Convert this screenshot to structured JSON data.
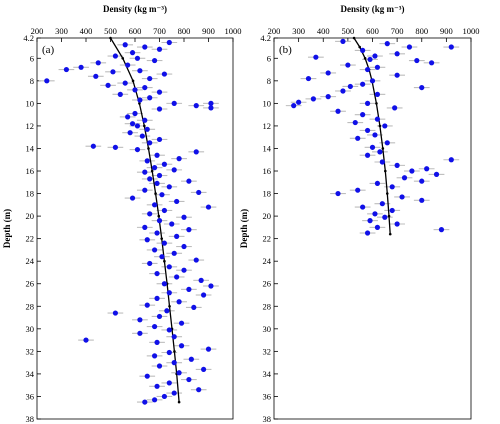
{
  "chart_data": [
    {
      "type": "scatter",
      "panel_label": "(a)",
      "xlabel": "Density (kg m⁻³)",
      "ylabel": "Depth (m)",
      "xlim": [
        200,
        1000
      ],
      "ylim": [
        38,
        4.2
      ],
      "x_ticks": [
        200,
        300,
        400,
        500,
        600,
        700,
        800,
        900,
        1000
      ],
      "y_ticks": [
        4.2,
        6,
        8,
        10,
        12,
        14,
        16,
        18,
        20,
        22,
        24,
        26,
        28,
        30,
        32,
        34,
        36,
        38
      ],
      "x_axis_position": "top",
      "error_bars": "horizontal",
      "marker_color": "#1010e8",
      "error_bar_color": "#bdbdbd",
      "fit_line_color": "#000000",
      "fit_line": {
        "depth": [
          4.2,
          6,
          8,
          10,
          12,
          14,
          16,
          18,
          20,
          22,
          24,
          26,
          28,
          30,
          32,
          34,
          36.5
        ],
        "density": [
          500,
          550,
          592,
          618,
          638,
          655,
          670,
          684,
          697,
          709,
          720,
          731,
          741,
          751,
          761,
          770,
          780
        ]
      },
      "points": [
        {
          "x": 740,
          "y": 4.6
        },
        {
          "x": 560,
          "y": 4.8
        },
        {
          "x": 640,
          "y": 5.0
        },
        {
          "x": 700,
          "y": 5.2
        },
        {
          "x": 590,
          "y": 5.5
        },
        {
          "x": 520,
          "y": 5.8
        },
        {
          "x": 610,
          "y": 6.0
        },
        {
          "x": 680,
          "y": 6.2
        },
        {
          "x": 450,
          "y": 6.4
        },
        {
          "x": 570,
          "y": 6.6
        },
        {
          "x": 380,
          "y": 6.8
        },
        {
          "x": 320,
          "y": 7.0
        },
        {
          "x": 620,
          "y": 7.1
        },
        {
          "x": 510,
          "y": 7.2
        },
        {
          "x": 720,
          "y": 7.4
        },
        {
          "x": 440,
          "y": 7.6
        },
        {
          "x": 660,
          "y": 7.8
        },
        {
          "x": 240,
          "y": 8.0
        },
        {
          "x": 560,
          "y": 8.2
        },
        {
          "x": 490,
          "y": 8.4
        },
        {
          "x": 640,
          "y": 8.6
        },
        {
          "x": 600,
          "y": 8.8
        },
        {
          "x": 700,
          "y": 9.0
        },
        {
          "x": 540,
          "y": 9.2
        },
        {
          "x": 660,
          "y": 9.5
        },
        {
          "x": 620,
          "y": 9.7
        },
        {
          "x": 760,
          "y": 10.0
        },
        {
          "x": 910,
          "y": 10.0
        },
        {
          "x": 850,
          "y": 10.2
        },
        {
          "x": 910,
          "y": 10.4
        },
        {
          "x": 700,
          "y": 10.5
        },
        {
          "x": 600,
          "y": 10.9
        },
        {
          "x": 570,
          "y": 11.2
        },
        {
          "x": 640,
          "y": 11.5
        },
        {
          "x": 590,
          "y": 11.8
        },
        {
          "x": 610,
          "y": 12.0
        },
        {
          "x": 650,
          "y": 12.3
        },
        {
          "x": 580,
          "y": 12.6
        },
        {
          "x": 630,
          "y": 12.9
        },
        {
          "x": 700,
          "y": 13.2
        },
        {
          "x": 660,
          "y": 13.5
        },
        {
          "x": 430,
          "y": 13.8
        },
        {
          "x": 520,
          "y": 13.9
        },
        {
          "x": 610,
          "y": 14.1
        },
        {
          "x": 850,
          "y": 14.3
        },
        {
          "x": 690,
          "y": 14.6
        },
        {
          "x": 780,
          "y": 14.9
        },
        {
          "x": 650,
          "y": 15.1
        },
        {
          "x": 720,
          "y": 15.4
        },
        {
          "x": 680,
          "y": 15.7
        },
        {
          "x": 760,
          "y": 15.9
        },
        {
          "x": 640,
          "y": 16.1
        },
        {
          "x": 700,
          "y": 16.4
        },
        {
          "x": 660,
          "y": 16.7
        },
        {
          "x": 820,
          "y": 16.9
        },
        {
          "x": 690,
          "y": 17.1
        },
        {
          "x": 740,
          "y": 17.4
        },
        {
          "x": 640,
          "y": 17.7
        },
        {
          "x": 860,
          "y": 17.9
        },
        {
          "x": 710,
          "y": 18.1
        },
        {
          "x": 590,
          "y": 18.4
        },
        {
          "x": 770,
          "y": 18.7
        },
        {
          "x": 680,
          "y": 19.0
        },
        {
          "x": 900,
          "y": 19.2
        },
        {
          "x": 720,
          "y": 19.5
        },
        {
          "x": 660,
          "y": 19.8
        },
        {
          "x": 800,
          "y": 20.1
        },
        {
          "x": 700,
          "y": 20.4
        },
        {
          "x": 750,
          "y": 20.7
        },
        {
          "x": 640,
          "y": 21.0
        },
        {
          "x": 820,
          "y": 21.2
        },
        {
          "x": 690,
          "y": 21.5
        },
        {
          "x": 770,
          "y": 21.8
        },
        {
          "x": 650,
          "y": 22.1
        },
        {
          "x": 720,
          "y": 22.4
        },
        {
          "x": 800,
          "y": 22.7
        },
        {
          "x": 680,
          "y": 23.0
        },
        {
          "x": 760,
          "y": 23.3
        },
        {
          "x": 710,
          "y": 23.6
        },
        {
          "x": 850,
          "y": 23.9
        },
        {
          "x": 660,
          "y": 24.2
        },
        {
          "x": 740,
          "y": 24.5
        },
        {
          "x": 800,
          "y": 24.8
        },
        {
          "x": 690,
          "y": 25.1
        },
        {
          "x": 770,
          "y": 25.4
        },
        {
          "x": 870,
          "y": 25.7
        },
        {
          "x": 720,
          "y": 26.0
        },
        {
          "x": 910,
          "y": 26.2
        },
        {
          "x": 820,
          "y": 26.5
        },
        {
          "x": 740,
          "y": 26.8
        },
        {
          "x": 880,
          "y": 27.0
        },
        {
          "x": 690,
          "y": 27.3
        },
        {
          "x": 780,
          "y": 27.6
        },
        {
          "x": 650,
          "y": 27.9
        },
        {
          "x": 840,
          "y": 28.1
        },
        {
          "x": 730,
          "y": 28.4
        },
        {
          "x": 520,
          "y": 28.6
        },
        {
          "x": 700,
          "y": 28.9
        },
        {
          "x": 620,
          "y": 29.2
        },
        {
          "x": 790,
          "y": 29.5
        },
        {
          "x": 680,
          "y": 29.8
        },
        {
          "x": 740,
          "y": 30.1
        },
        {
          "x": 620,
          "y": 30.4
        },
        {
          "x": 760,
          "y": 30.7
        },
        {
          "x": 400,
          "y": 31.0
        },
        {
          "x": 690,
          "y": 31.2
        },
        {
          "x": 790,
          "y": 31.5
        },
        {
          "x": 900,
          "y": 31.8
        },
        {
          "x": 740,
          "y": 32.1
        },
        {
          "x": 680,
          "y": 32.4
        },
        {
          "x": 830,
          "y": 32.7
        },
        {
          "x": 760,
          "y": 33.0
        },
        {
          "x": 700,
          "y": 33.3
        },
        {
          "x": 880,
          "y": 33.6
        },
        {
          "x": 780,
          "y": 33.9
        },
        {
          "x": 650,
          "y": 34.2
        },
        {
          "x": 820,
          "y": 34.5
        },
        {
          "x": 740,
          "y": 34.8
        },
        {
          "x": 690,
          "y": 35.1
        },
        {
          "x": 860,
          "y": 35.4
        },
        {
          "x": 760,
          "y": 35.7
        },
        {
          "x": 720,
          "y": 36.0
        },
        {
          "x": 680,
          "y": 36.3
        },
        {
          "x": 640,
          "y": 36.5
        }
      ]
    },
    {
      "type": "scatter",
      "panel_label": "(b)",
      "xlabel": "Density (kg m⁻³)",
      "ylabel": "Depth (m)",
      "xlim": [
        200,
        1000
      ],
      "ylim": [
        38,
        4.2
      ],
      "x_ticks": [
        200,
        300,
        400,
        500,
        600,
        700,
        800,
        900,
        1000
      ],
      "y_ticks": [
        4.2,
        6,
        8,
        10,
        12,
        14,
        16,
        18,
        20,
        22,
        24,
        26,
        28,
        30,
        32,
        34,
        36,
        38
      ],
      "x_axis_position": "top",
      "error_bars": "horizontal",
      "marker_color": "#1010e8",
      "error_bar_color": "#bdbdbd",
      "fit_line_color": "#000000",
      "fit_line": {
        "depth": [
          4.2,
          5,
          6,
          7,
          8,
          10,
          12,
          14,
          16,
          18,
          20,
          21.6
        ],
        "density": [
          525,
          548,
          570,
          586,
          598,
          616,
          630,
          642,
          652,
          660,
          667,
          672
        ]
      },
      "points": [
        {
          "x": 480,
          "y": 4.5
        },
        {
          "x": 660,
          "y": 4.7
        },
        {
          "x": 750,
          "y": 5.0
        },
        {
          "x": 920,
          "y": 5.0
        },
        {
          "x": 560,
          "y": 5.3
        },
        {
          "x": 700,
          "y": 5.6
        },
        {
          "x": 610,
          "y": 5.8
        },
        {
          "x": 370,
          "y": 5.9
        },
        {
          "x": 590,
          "y": 6.1
        },
        {
          "x": 780,
          "y": 6.2
        },
        {
          "x": 840,
          "y": 6.4
        },
        {
          "x": 500,
          "y": 6.6
        },
        {
          "x": 620,
          "y": 6.8
        },
        {
          "x": 580,
          "y": 7.0
        },
        {
          "x": 420,
          "y": 7.3
        },
        {
          "x": 700,
          "y": 7.5
        },
        {
          "x": 340,
          "y": 7.8
        },
        {
          "x": 600,
          "y": 8.0
        },
        {
          "x": 560,
          "y": 8.3
        },
        {
          "x": 510,
          "y": 8.5
        },
        {
          "x": 800,
          "y": 8.6
        },
        {
          "x": 480,
          "y": 8.9
        },
        {
          "x": 620,
          "y": 9.2
        },
        {
          "x": 420,
          "y": 9.4
        },
        {
          "x": 360,
          "y": 9.6
        },
        {
          "x": 300,
          "y": 9.9
        },
        {
          "x": 580,
          "y": 10.0
        },
        {
          "x": 280,
          "y": 10.2
        },
        {
          "x": 690,
          "y": 10.4
        },
        {
          "x": 460,
          "y": 10.7
        },
        {
          "x": 560,
          "y": 11.0
        },
        {
          "x": 620,
          "y": 11.4
        },
        {
          "x": 530,
          "y": 11.7
        },
        {
          "x": 650,
          "y": 12.0
        },
        {
          "x": 580,
          "y": 12.4
        },
        {
          "x": 610,
          "y": 12.8
        },
        {
          "x": 540,
          "y": 13.1
        },
        {
          "x": 660,
          "y": 13.5
        },
        {
          "x": 600,
          "y": 13.9
        },
        {
          "x": 630,
          "y": 14.3
        },
        {
          "x": 580,
          "y": 14.6
        },
        {
          "x": 920,
          "y": 15.0
        },
        {
          "x": 640,
          "y": 15.2
        },
        {
          "x": 700,
          "y": 15.5
        },
        {
          "x": 820,
          "y": 15.8
        },
        {
          "x": 760,
          "y": 16.0
        },
        {
          "x": 860,
          "y": 16.3
        },
        {
          "x": 730,
          "y": 16.6
        },
        {
          "x": 800,
          "y": 16.9
        },
        {
          "x": 620,
          "y": 17.1
        },
        {
          "x": 680,
          "y": 17.4
        },
        {
          "x": 540,
          "y": 17.7
        },
        {
          "x": 460,
          "y": 18.0
        },
        {
          "x": 720,
          "y": 18.3
        },
        {
          "x": 800,
          "y": 18.6
        },
        {
          "x": 640,
          "y": 18.9
        },
        {
          "x": 560,
          "y": 19.2
        },
        {
          "x": 680,
          "y": 19.5
        },
        {
          "x": 610,
          "y": 19.8
        },
        {
          "x": 650,
          "y": 20.1
        },
        {
          "x": 590,
          "y": 20.4
        },
        {
          "x": 700,
          "y": 20.7
        },
        {
          "x": 620,
          "y": 21.0
        },
        {
          "x": 880,
          "y": 21.2
        },
        {
          "x": 580,
          "y": 21.5
        }
      ]
    }
  ]
}
